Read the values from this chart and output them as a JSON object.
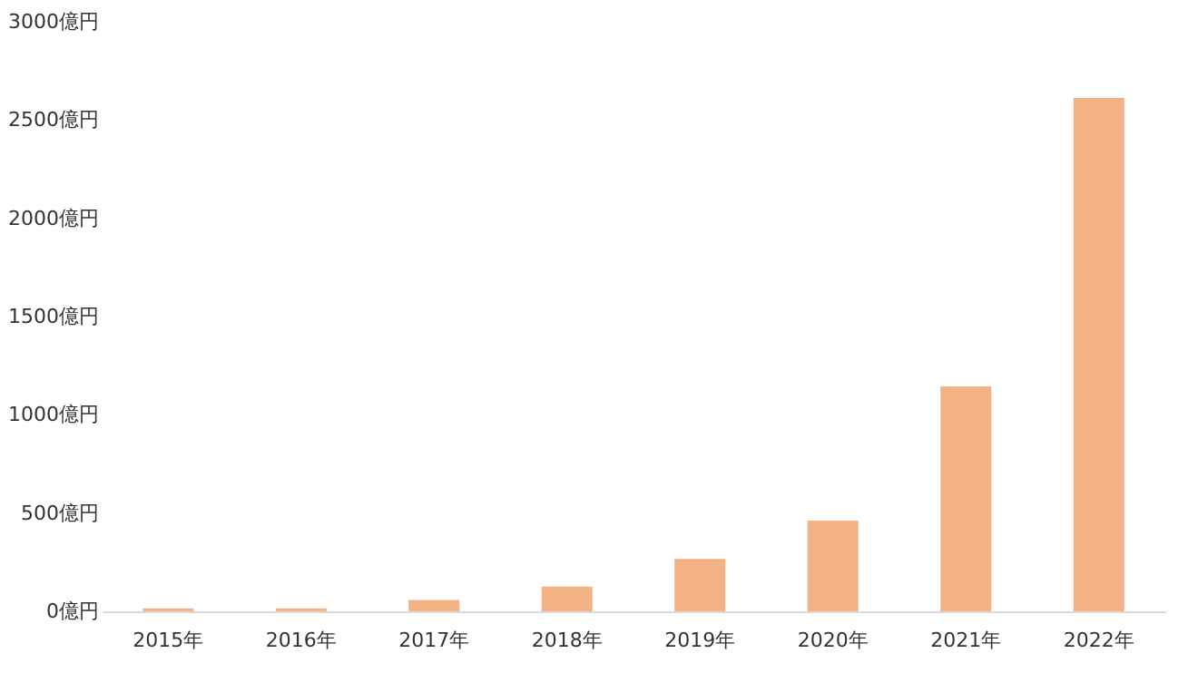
{
  "chart_data": {
    "type": "bar",
    "categories": [
      "2015年",
      "2016年",
      "2017年",
      "2018年",
      "2019年",
      "2020年",
      "2021年",
      "2022年"
    ],
    "values": [
      15,
      15,
      58,
      126,
      267,
      462,
      1145,
      2612
    ],
    "color": "#f2b283",
    "ylim": [
      0,
      3000
    ],
    "yticks": [
      {
        "value": 0,
        "label": "0億円"
      },
      {
        "value": 500,
        "label": "500億円"
      },
      {
        "value": 1000,
        "label": "1000億円"
      },
      {
        "value": 1500,
        "label": "1500億円"
      },
      {
        "value": 2000,
        "label": "2000億円"
      },
      {
        "value": 2500,
        "label": "2500億円"
      },
      {
        "value": 3000,
        "label": "3000億円"
      }
    ],
    "grid": false
  }
}
